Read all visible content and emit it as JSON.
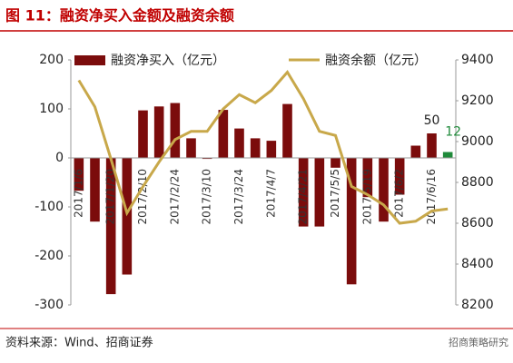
{
  "chart_data": {
    "type": "bar_line",
    "title": "图 11：融资净买入金额及融资余额",
    "source": "资料来源：Wind、招商证券",
    "watermark": "招商策略研究",
    "categories": [
      "2017/1/6",
      null,
      "2017/1/20",
      null,
      "2017/2/10",
      null,
      "2017/2/24",
      null,
      "2017/3/10",
      null,
      "2017/3/24",
      null,
      "2017/4/7",
      null,
      "2017/4/21",
      null,
      "2017/5/5",
      null,
      "2017/5/19",
      null,
      "2017/6/2",
      null,
      "2017/6/16",
      null
    ],
    "series": [
      {
        "name": "融资净买入（亿元）",
        "type": "bar",
        "color": "#7b0c0c",
        "colors": [
          "#7b0c0c",
          "#7b0c0c",
          "#7b0c0c",
          "#7b0c0c",
          "#7b0c0c",
          "#7b0c0c",
          "#7b0c0c",
          "#7b0c0c",
          "#7b0c0c",
          "#7b0c0c",
          "#7b0c0c",
          "#7b0c0c",
          "#7b0c0c",
          "#7b0c0c",
          "#7b0c0c",
          "#7b0c0c",
          "#7b0c0c",
          "#7b0c0c",
          "#7b0c0c",
          "#7b0c0c",
          "#7b0c0c",
          "#7b0c0c",
          "#7b0c0c",
          "#1f8a3a"
        ],
        "values": [
          -67,
          -130,
          -278,
          -238,
          97,
          105,
          112,
          40,
          -2,
          98,
          60,
          40,
          35,
          110,
          -140,
          -140,
          -20,
          -258,
          -80,
          -130,
          -75,
          25,
          50,
          12
        ],
        "value_labels": [
          null,
          null,
          null,
          null,
          null,
          null,
          null,
          null,
          null,
          null,
          null,
          null,
          null,
          null,
          null,
          null,
          null,
          null,
          null,
          null,
          null,
          null,
          "50",
          "12"
        ],
        "label_colors": [
          null,
          null,
          null,
          null,
          null,
          null,
          null,
          null,
          null,
          null,
          null,
          null,
          null,
          null,
          null,
          null,
          null,
          null,
          null,
          null,
          null,
          null,
          "#222222",
          "#1f8a3a"
        ]
      },
      {
        "name": "融资余额（亿元）",
        "type": "line",
        "axis": "y2",
        "color": "#c8a84a",
        "values": [
          9300,
          9170,
          8915,
          8650,
          8780,
          8900,
          9010,
          9050,
          9050,
          9160,
          9230,
          9190,
          9250,
          9340,
          9210,
          9050,
          9030,
          8780,
          8740,
          8690,
          8600,
          8610,
          8660,
          8670
        ]
      }
    ],
    "ylim": [
      -300,
      200
    ],
    "yticks": [
      -300,
      -200,
      -100,
      0,
      100,
      200
    ],
    "y2lim": [
      8200,
      9400
    ],
    "y2ticks": [
      8200,
      8400,
      8600,
      8800,
      9000,
      9200,
      9400
    ]
  }
}
